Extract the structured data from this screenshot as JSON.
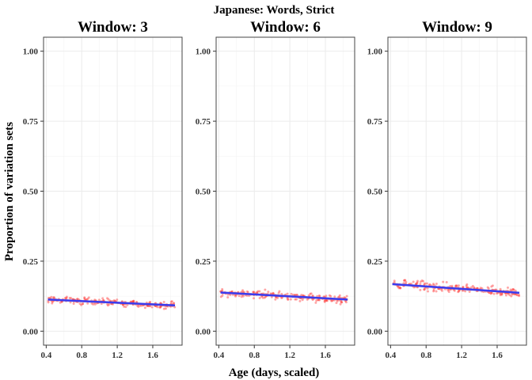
{
  "chart_data": {
    "type": "scatter",
    "title": "Japanese: Words, Strict",
    "xlabel": "Age (days, scaled)",
    "ylabel": "Proportion of variation sets",
    "xlim": [
      0.37,
      1.93
    ],
    "ylim": [
      -0.05,
      1.05
    ],
    "xticks": [
      "0.4",
      "0.8",
      "1.2",
      "1.6"
    ],
    "yticks": [
      "0.00",
      "0.25",
      "0.50",
      "0.75",
      "1.00"
    ],
    "grid": true,
    "colors": {
      "points": "#ff3b3b",
      "line": "#3b3bf0",
      "ribbon": "#9a9a9a",
      "grid": "#ebebeb",
      "border": "#444444"
    },
    "panels": [
      {
        "title": "Window: 3",
        "fit": {
          "x": [
            0.42,
            1.85
          ],
          "y": [
            0.113,
            0.092
          ]
        },
        "spread": 0.012
      },
      {
        "title": "Window: 6",
        "fit": {
          "x": [
            0.42,
            1.85
          ],
          "y": [
            0.138,
            0.113
          ]
        },
        "spread": 0.014
      },
      {
        "title": "Window: 9",
        "fit": {
          "x": [
            0.42,
            1.85
          ],
          "y": [
            0.168,
            0.137
          ]
        },
        "spread": 0.016
      }
    ]
  }
}
